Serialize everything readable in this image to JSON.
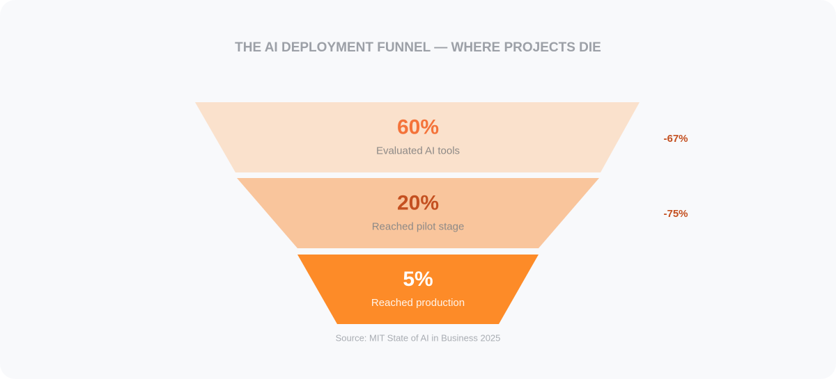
{
  "chart_data": {
    "type": "funnel",
    "title": "THE AI DEPLOYMENT FUNNEL — WHERE PROJECTS DIE",
    "categories": [
      "Evaluated AI tools",
      "Reached pilot stage",
      "Reached production"
    ],
    "values": [
      60,
      20,
      5
    ],
    "value_labels": [
      "60%",
      "20%",
      "5%"
    ],
    "colors": [
      "#fae1cc",
      "#f9c59c",
      "#fd8b28"
    ],
    "annotations": [
      "-67%",
      "-75%"
    ],
    "source": "Source: MIT State of AI in Business 2025"
  }
}
